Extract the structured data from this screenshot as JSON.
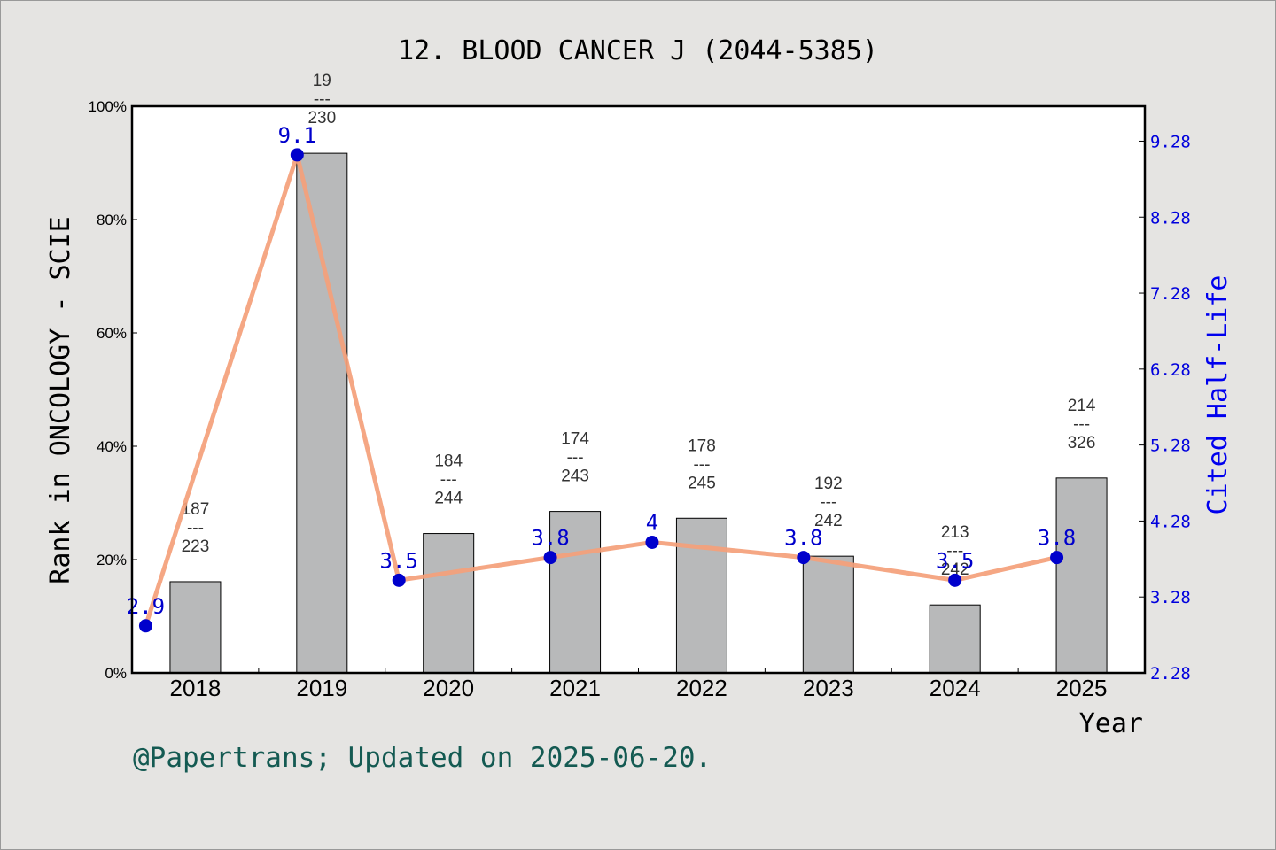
{
  "chart_data": {
    "type": "bar",
    "title": "12. BLOOD CANCER J (2044-5385)",
    "xlabel": "Year",
    "ylabel": "Rank in ONCOLOGY - SCIE",
    "y2label": "Cited Half-Life",
    "ylim": [
      0,
      100
    ],
    "y2lim": [
      2.28,
      9.74
    ],
    "yticks": [
      "0%",
      "20%",
      "40%",
      "60%",
      "80%",
      "100%"
    ],
    "y2ticks": [
      "2.28",
      "3.28",
      "4.28",
      "5.28",
      "6.28",
      "7.28",
      "8.28",
      "9.28"
    ],
    "categories": [
      "2018",
      "2019",
      "2020",
      "2021",
      "2022",
      "2023",
      "2024",
      "2025"
    ],
    "series": [
      {
        "type": "bar",
        "axis": "left",
        "values": [
          16.1,
          91.7,
          24.6,
          28.5,
          27.3,
          20.6,
          12.0,
          34.4
        ],
        "rank": [
          "187",
          "19",
          "184",
          "174",
          "178",
          "192",
          "213",
          "214"
        ],
        "total": [
          "223",
          "230",
          "244",
          "243",
          "245",
          "242",
          "242",
          "326"
        ],
        "separator": "---",
        "color": "#b8b9ba"
      },
      {
        "type": "line",
        "axis": "right",
        "values": [
          2.9,
          9.1,
          3.5,
          3.8,
          4.0,
          3.8,
          3.5,
          3.8
        ],
        "labels": [
          "2.9",
          "9.1",
          "3.5",
          "3.8",
          "4",
          "3.8",
          "3.5",
          "3.8"
        ],
        "line_color": "#f4a07a",
        "marker_color": "#0000cc"
      }
    ]
  },
  "footer": "@Papertrans; Updated on 2025-06-20."
}
